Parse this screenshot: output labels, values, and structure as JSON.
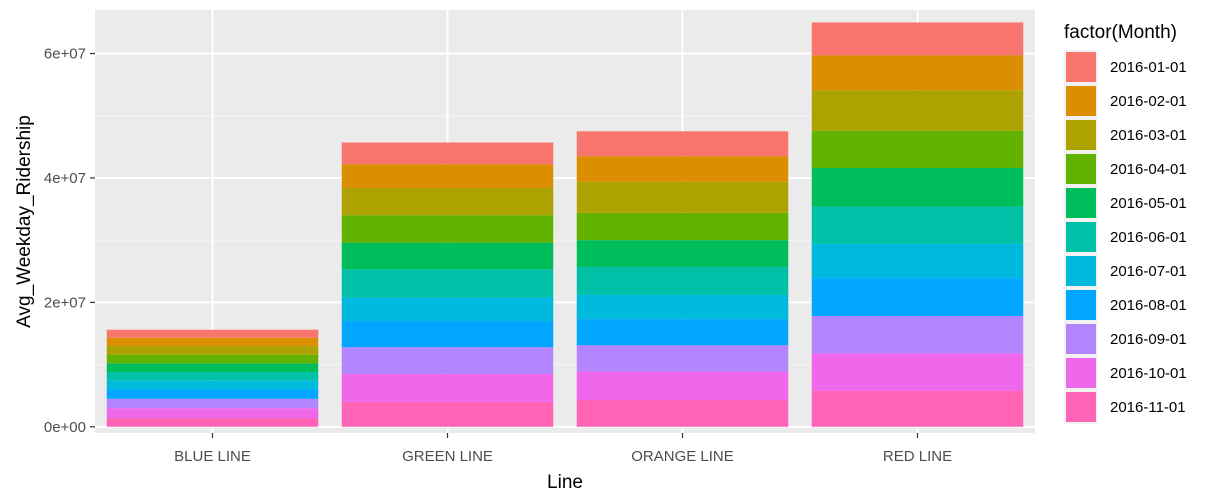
{
  "chart_data": {
    "type": "bar",
    "stacked": true,
    "xlabel": "Line",
    "ylabel": "Avg_Weekday_Ridership",
    "ylim": [
      -1000000,
      67000000
    ],
    "yticks": [
      0,
      20000000,
      40000000,
      60000000
    ],
    "ytick_labels": [
      "0e+00",
      "2e+07",
      "4e+07",
      "6e+07"
    ],
    "grid": true,
    "legend_position": "right",
    "legend_title": "factor(Month)",
    "categories": [
      "BLUE LINE",
      "GREEN LINE",
      "ORANGE LINE",
      "RED LINE"
    ],
    "series": [
      {
        "name": "2016-01-01",
        "color": "#F8766D",
        "values": [
          1300000,
          3500000,
          4000000,
          5300000
        ]
      },
      {
        "name": "2016-02-01",
        "color": "#DB8E00",
        "values": [
          1300000,
          3800000,
          4100000,
          5600000
        ]
      },
      {
        "name": "2016-03-01",
        "color": "#AEA200",
        "values": [
          1400000,
          4400000,
          5000000,
          6500000
        ]
      },
      {
        "name": "2016-04-01",
        "color": "#64B200",
        "values": [
          1400000,
          4400000,
          4400000,
          6000000
        ]
      },
      {
        "name": "2016-05-01",
        "color": "#00BD5C",
        "values": [
          1400000,
          4300000,
          4300000,
          6200000
        ]
      },
      {
        "name": "2016-06-01",
        "color": "#00C1A7",
        "values": [
          1400000,
          4500000,
          4500000,
          6000000
        ]
      },
      {
        "name": "2016-07-01",
        "color": "#00BADE",
        "values": [
          1400000,
          3800000,
          3900000,
          5500000
        ]
      },
      {
        "name": "2016-08-01",
        "color": "#00A6FF",
        "values": [
          1500000,
          4200000,
          4200000,
          6100000
        ]
      },
      {
        "name": "2016-09-01",
        "color": "#B385FF",
        "values": [
          1500000,
          4300000,
          4200000,
          6000000
        ]
      },
      {
        "name": "2016-10-01",
        "color": "#EF67EB",
        "values": [
          1600000,
          4500000,
          4600000,
          6000000
        ]
      },
      {
        "name": "2016-11-01",
        "color": "#FF63B6",
        "values": [
          1400000,
          4000000,
          4300000,
          5800000
        ]
      }
    ]
  }
}
